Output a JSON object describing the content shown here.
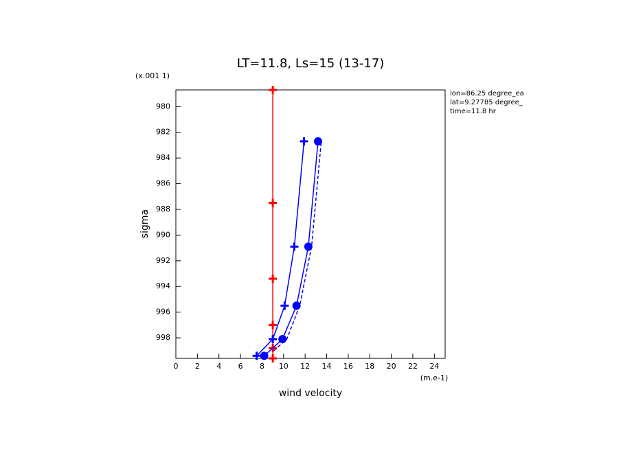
{
  "chart_data": {
    "type": "profile",
    "title": "LT=11.8, Ls=15 (13-17)",
    "x_label": "wind velocity",
    "x_unit": "(m.e-1)",
    "y_label": "sigma",
    "y_unit": "(x.001 1)",
    "annotations": [
      "lon=86.25 degree_ea",
      "lat=9.27785 degree_",
      "time=11.8 hr"
    ],
    "xlim": [
      0,
      25
    ],
    "xticks": [
      0,
      2,
      4,
      6,
      8,
      10,
      12,
      14,
      16,
      18,
      20,
      22,
      24
    ],
    "ylim": [
      999.6,
      978.7
    ],
    "yticks": [
      980,
      982,
      984,
      986,
      988,
      990,
      992,
      994,
      996,
      998
    ],
    "series": [
      {
        "color": "#ff0000",
        "dash": false,
        "marker": "plus",
        "x": [
          9.0,
          9.0,
          9.0,
          9.0,
          9.0,
          9.0
        ],
        "y": [
          978.7,
          987.5,
          993.4,
          997.0,
          998.8,
          999.6
        ]
      },
      {
        "color": "#0000ff",
        "dash": false,
        "marker": "plus",
        "x": [
          7.5,
          9.0,
          10.1,
          11.0,
          11.9
        ],
        "y": [
          999.4,
          998.1,
          995.5,
          990.9,
          982.7
        ]
      },
      {
        "color": "#0000ff",
        "dash": false,
        "marker": "circle",
        "x": [
          8.2,
          9.9,
          11.2,
          12.3,
          13.2
        ],
        "y": [
          999.4,
          998.1,
          995.5,
          990.9,
          982.7
        ]
      },
      {
        "color": "#0000ff",
        "dash": true,
        "marker": "none",
        "x": [
          9.1,
          10.3,
          11.5,
          12.6,
          13.5
        ],
        "y": [
          999.0,
          998.1,
          995.5,
          990.9,
          982.7
        ]
      }
    ]
  }
}
